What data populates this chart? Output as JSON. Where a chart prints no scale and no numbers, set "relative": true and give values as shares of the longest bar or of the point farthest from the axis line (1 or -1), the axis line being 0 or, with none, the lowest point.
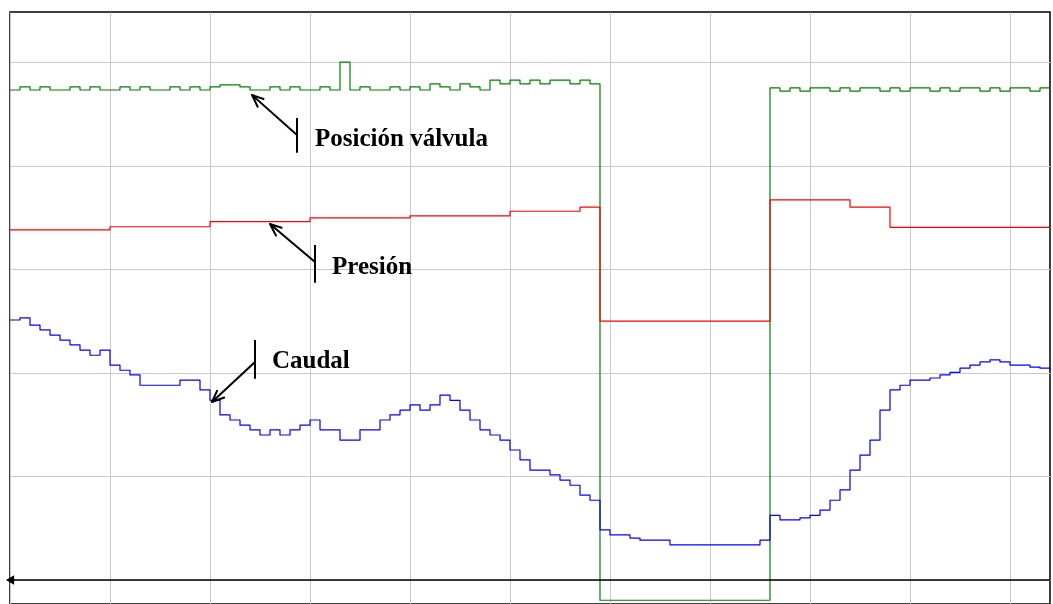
{
  "chart_data": {
    "type": "step",
    "relative": true,
    "grid": true,
    "line_style": "solid",
    "categories": [
      null,
      null,
      null,
      null,
      null,
      null,
      null,
      null,
      null,
      null,
      null,
      null,
      null,
      null,
      null,
      null,
      null,
      null,
      null,
      null,
      null,
      null,
      null,
      null,
      null,
      null,
      null,
      null,
      null,
      null,
      null,
      null,
      null,
      null,
      null,
      null,
      null,
      null,
      null,
      null,
      null,
      null,
      null,
      null,
      null,
      null,
      null,
      null,
      null,
      null,
      null,
      null,
      null,
      null,
      null,
      null,
      null,
      null,
      null,
      null,
      null,
      null,
      null,
      null,
      null,
      null,
      null,
      null,
      null,
      null,
      null,
      null,
      null,
      null,
      null,
      null,
      null,
      null,
      null,
      null,
      null,
      null,
      null,
      null,
      null,
      null,
      null,
      null,
      null,
      null,
      null,
      null,
      null,
      null,
      null,
      null,
      null,
      null,
      null,
      null,
      null,
      null,
      null,
      null,
      null
    ],
    "series": [
      {
        "name": "Posición válvula",
        "color": "#008000",
        "values": [
          0.946,
          0.952,
          0.946,
          0.952,
          0.946,
          0.946,
          0.952,
          0.946,
          0.952,
          0.946,
          0.946,
          0.952,
          0.946,
          0.952,
          0.946,
          0.946,
          0.952,
          0.946,
          0.952,
          0.946,
          0.952,
          0.956,
          0.956,
          0.952,
          0.946,
          0.946,
          0.952,
          0.946,
          0.952,
          0.946,
          0.946,
          0.952,
          0.946,
          1.0,
          0.946,
          0.952,
          0.946,
          0.946,
          0.952,
          0.946,
          0.952,
          0.946,
          0.958,
          0.952,
          0.946,
          0.958,
          0.952,
          0.946,
          0.965,
          0.958,
          0.965,
          0.958,
          0.965,
          0.958,
          0.965,
          0.965,
          0.958,
          0.965,
          0.958,
          -0.039,
          -0.039,
          -0.039,
          -0.039,
          -0.039,
          -0.039,
          -0.039,
          -0.039,
          -0.039,
          -0.039,
          -0.039,
          -0.039,
          -0.039,
          -0.039,
          -0.039,
          -0.039,
          -0.039,
          0.95,
          0.944,
          0.95,
          0.944,
          0.95,
          0.95,
          0.944,
          0.95,
          0.944,
          0.95,
          0.95,
          0.944,
          0.95,
          0.944,
          0.95,
          0.95,
          0.944,
          0.95,
          0.944,
          0.95,
          0.95,
          0.944,
          0.95,
          0.944,
          0.95,
          0.95,
          0.944,
          0.95,
          0.95
        ]
      },
      {
        "name": "Presión",
        "color": "#ff0000",
        "values": [
          0.676,
          0.676,
          0.676,
          0.676,
          0.676,
          0.676,
          0.676,
          0.676,
          0.676,
          0.676,
          0.682,
          0.682,
          0.682,
          0.682,
          0.682,
          0.682,
          0.682,
          0.682,
          0.682,
          0.682,
          0.692,
          0.692,
          0.692,
          0.692,
          0.692,
          0.692,
          0.692,
          0.692,
          0.692,
          0.692,
          0.699,
          0.699,
          0.699,
          0.699,
          0.699,
          0.699,
          0.699,
          0.699,
          0.699,
          0.699,
          0.703,
          0.703,
          0.703,
          0.703,
          0.703,
          0.703,
          0.703,
          0.703,
          0.703,
          0.703,
          0.712,
          0.712,
          0.712,
          0.712,
          0.712,
          0.712,
          0.712,
          0.72,
          0.72,
          0.5,
          0.5,
          0.5,
          0.5,
          0.5,
          0.5,
          0.5,
          0.5,
          0.5,
          0.5,
          0.5,
          0.5,
          0.5,
          0.5,
          0.5,
          0.5,
          0.5,
          0.734,
          0.734,
          0.734,
          0.734,
          0.734,
          0.734,
          0.734,
          0.734,
          0.72,
          0.72,
          0.72,
          0.72,
          0.681,
          0.681,
          0.681,
          0.681,
          0.681,
          0.681,
          0.681,
          0.681,
          0.681,
          0.681,
          0.681,
          0.681,
          0.681,
          0.681,
          0.681,
          0.681,
          0.681
        ]
      },
      {
        "name": "Caudal",
        "color": "#0000ff",
        "values": [
          0.502,
          0.506,
          0.492,
          0.483,
          0.473,
          0.463,
          0.454,
          0.444,
          0.434,
          0.444,
          0.415,
          0.405,
          0.396,
          0.376,
          0.376,
          0.376,
          0.376,
          0.386,
          0.386,
          0.367,
          0.347,
          0.319,
          0.309,
          0.299,
          0.29,
          0.28,
          0.29,
          0.28,
          0.29,
          0.299,
          0.309,
          0.29,
          0.29,
          0.27,
          0.27,
          0.29,
          0.29,
          0.309,
          0.319,
          0.328,
          0.338,
          0.328,
          0.338,
          0.357,
          0.347,
          0.328,
          0.309,
          0.29,
          0.28,
          0.27,
          0.251,
          0.232,
          0.212,
          0.212,
          0.203,
          0.193,
          0.183,
          0.164,
          0.154,
          0.097,
          0.087,
          0.087,
          0.081,
          0.077,
          0.077,
          0.077,
          0.068,
          0.068,
          0.068,
          0.068,
          0.068,
          0.068,
          0.068,
          0.068,
          0.068,
          0.077,
          0.125,
          0.116,
          0.116,
          0.12,
          0.125,
          0.135,
          0.154,
          0.174,
          0.212,
          0.241,
          0.27,
          0.328,
          0.367,
          0.376,
          0.386,
          0.386,
          0.39,
          0.396,
          0.401,
          0.409,
          0.415,
          0.421,
          0.425,
          0.421,
          0.415,
          0.415,
          0.411,
          0.409,
          0.405
        ]
      }
    ]
  }
}
